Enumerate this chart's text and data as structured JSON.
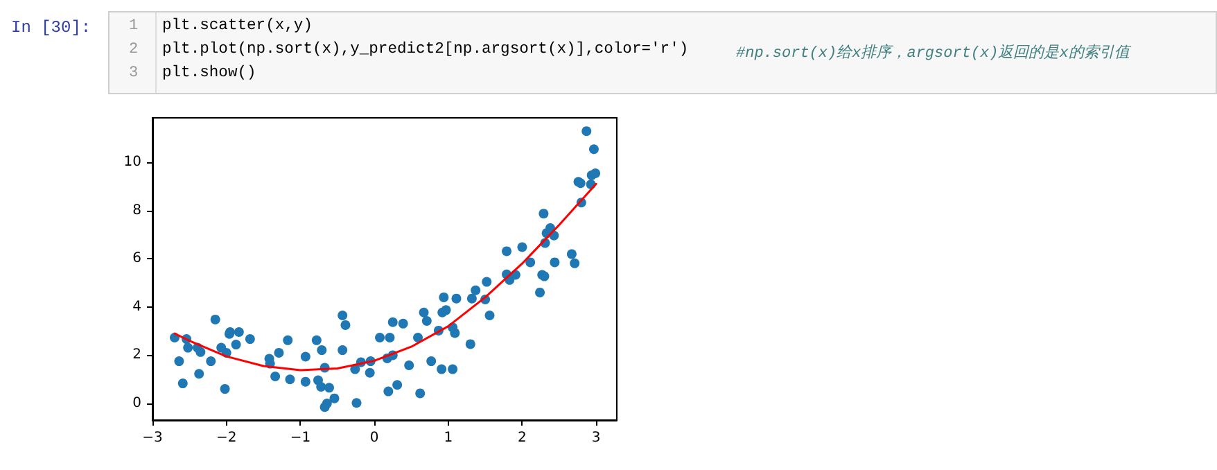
{
  "chart_data": {
    "type": "scatter",
    "annotations": [
      "In [30]:",
      "1",
      "plt.scatter(x,y)",
      "2",
      "plt.plot(np.sort(x),y_predict2[np.argsort(x)],color='r')",
      "#np.sort(x)给x排序，argsort(x)返回的是x的索引值",
      "3",
      "plt.show()"
    ],
    "xlim": [
      -3,
      3.28
    ],
    "xticks": [
      -3,
      -2,
      -1,
      0,
      1,
      2,
      3
    ],
    "ylim": [
      -0.69,
      11.84
    ],
    "yticks": [
      0,
      2,
      4,
      6,
      8,
      10
    ],
    "grid": false,
    "series": [
      {
        "color": "#1f77b4",
        "marker": "circle",
        "x": [
          -2.7,
          -2.64,
          -2.59,
          -2.54,
          -2.52,
          -2.39,
          -2.35,
          -2.37,
          -2.21,
          -2.15,
          -2.07,
          -2.0,
          -2.02,
          -1.96,
          -1.95,
          -1.87,
          -1.83,
          -1.68,
          -1.42,
          -1.41,
          -1.34,
          -1.29,
          -1.17,
          -1.14,
          -0.93,
          -0.93,
          -0.78,
          -0.76,
          -0.72,
          -0.71,
          -0.67,
          -0.67,
          -0.64,
          -0.61,
          -0.54,
          -0.43,
          -0.39,
          -0.43,
          -0.26,
          -0.24,
          -0.18,
          -0.06,
          -0.05,
          0.075,
          0.21,
          0.175,
          0.25,
          0.19,
          0.31,
          0.25,
          0.39,
          0.47,
          0.59,
          0.62,
          0.67,
          0.71,
          0.77,
          0.87,
          0.91,
          0.92,
          0.94,
          0.97,
          1.06,
          1.09,
          1.06,
          1.11,
          1.3,
          1.32,
          1.37,
          1.5,
          1.52,
          1.56,
          1.79,
          1.79,
          1.83,
          1.91,
          2.0,
          2.11,
          2.24,
          2.27,
          2.29,
          2.3,
          2.31,
          2.33,
          2.38,
          2.43,
          2.44,
          2.67,
          2.71,
          2.76,
          2.79,
          2.8,
          2.87,
          2.97,
          2.94,
          2.99,
          2.93
        ],
        "values": [
          2.73,
          1.75,
          0.83,
          2.67,
          2.31,
          2.31,
          2.13,
          1.23,
          1.75,
          3.48,
          2.31,
          2.1,
          0.6,
          2.88,
          2.96,
          2.44,
          2.96,
          2.67,
          1.85,
          1.65,
          1.12,
          2.1,
          2.62,
          1.0,
          1.94,
          0.9,
          2.62,
          0.96,
          0.69,
          2.21,
          1.48,
          -0.15,
          0.0,
          0.65,
          0.21,
          3.65,
          3.25,
          2.21,
          1.42,
          0.02,
          1.71,
          1.27,
          1.75,
          2.73,
          2.73,
          1.87,
          2.0,
          0.5,
          0.77,
          3.37,
          3.31,
          1.58,
          2.73,
          0.42,
          3.77,
          3.42,
          1.75,
          3.02,
          1.42,
          3.77,
          4.4,
          3.87,
          3.15,
          2.92,
          1.42,
          4.35,
          2.46,
          4.35,
          4.69,
          4.31,
          5.04,
          3.65,
          6.31,
          5.35,
          5.12,
          5.33,
          6.48,
          5.85,
          4.6,
          5.33,
          7.87,
          5.27,
          6.65,
          7.06,
          7.27,
          6.96,
          5.85,
          6.19,
          5.81,
          9.19,
          9.13,
          8.33,
          11.29,
          10.54,
          9.46,
          9.54,
          9.08
        ]
      },
      {
        "type": "line",
        "color": "#ff0000",
        "marker": "none",
        "line_style": "solid",
        "x": [
          -2.7,
          -2.5,
          -2,
          -1.5,
          -1,
          -0.5,
          0,
          0.5,
          1,
          1.5,
          2,
          2.5,
          3
        ],
        "values": [
          2.9,
          2.6,
          1.95,
          1.55,
          1.38,
          1.45,
          1.77,
          2.35,
          3.2,
          4.4,
          5.8,
          7.4,
          9.1
        ]
      }
    ]
  }
}
